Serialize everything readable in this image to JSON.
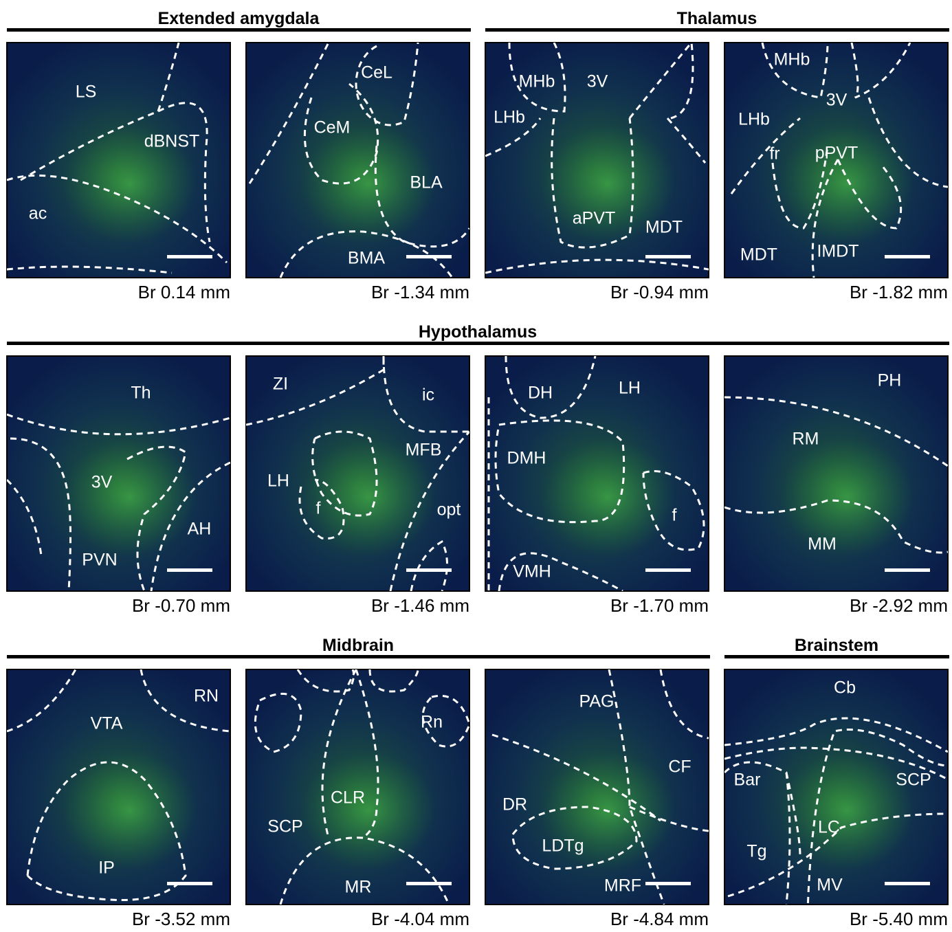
{
  "sections": [
    {
      "title": "Extended amygdala"
    },
    {
      "title": "Thalamus"
    },
    {
      "title": "Hypothalamus"
    },
    {
      "title": "Midbrain"
    },
    {
      "title": "Brainstem"
    }
  ],
  "panels": [
    {
      "labels": [
        "LS",
        "dBNST",
        "ac"
      ],
      "caption": "Br 0.14 mm"
    },
    {
      "labels": [
        "CeL",
        "CeM",
        "BLA",
        "BMA"
      ],
      "caption": "Br -1.34 mm"
    },
    {
      "labels": [
        "MHb",
        "3V",
        "LHb",
        "aPVT",
        "MDT"
      ],
      "caption": "Br -0.94 mm"
    },
    {
      "labels": [
        "MHb",
        "3V",
        "LHb",
        "fr",
        "pPVT",
        "MDT",
        "IMDT"
      ],
      "caption": "Br -1.82 mm"
    },
    {
      "labels": [
        "Th",
        "3V",
        "AH",
        "PVN"
      ],
      "caption": "Br -0.70 mm"
    },
    {
      "labels": [
        "ZI",
        "ic",
        "MFB",
        "LH",
        "f",
        "opt"
      ],
      "caption": "Br -1.46 mm"
    },
    {
      "labels": [
        "DH",
        "LH",
        "DMH",
        "f",
        "VMH"
      ],
      "caption": "Br -1.70 mm"
    },
    {
      "labels": [
        "PH",
        "RM",
        "MM"
      ],
      "caption": "Br -2.92 mm"
    },
    {
      "labels": [
        "RN",
        "VTA",
        "IP"
      ],
      "caption": "Br -3.52 mm"
    },
    {
      "labels": [
        "Rn",
        "CLR",
        "SCP",
        "MR"
      ],
      "caption": "Br -4.04 mm"
    },
    {
      "labels": [
        "PAG",
        "CF",
        "DR",
        "LDTg",
        "MRF"
      ],
      "caption": "Br -4.84 mm"
    },
    {
      "labels": [
        "Cb",
        "SCP",
        "Bar",
        "LC",
        "Tg",
        "MV"
      ],
      "caption": "Br -5.40 mm"
    }
  ]
}
